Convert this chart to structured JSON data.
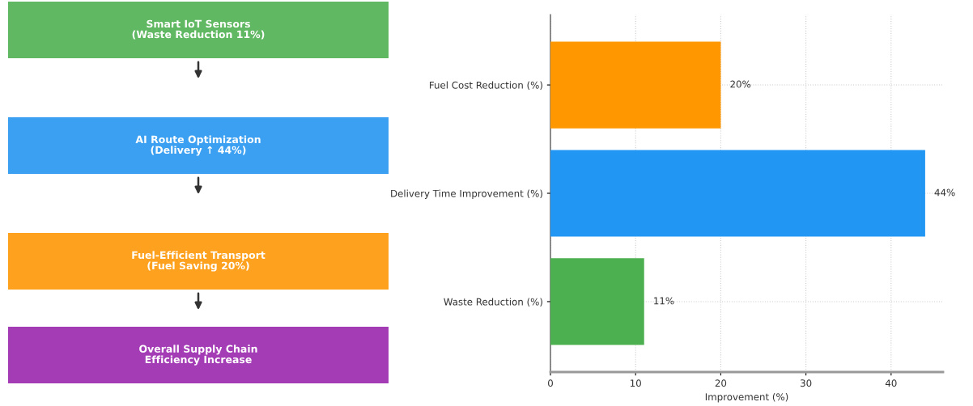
{
  "chart_data": [
    {
      "type": "other",
      "annotations": [
        "Smart IoT Sensors\n(Waste Reduction 11%)",
        "AI Route Optimization\n(Delivery ↑ 44%)",
        "Fuel-Efficient Transport\n(Fuel Saving 20%)",
        "Overall Supply Chain\nEfficiency Increase"
      ],
      "colors": [
        "#61b862",
        "#3ba0f2",
        "#fea11f",
        "#a43db5"
      ]
    },
    {
      "type": "bar",
      "orientation": "horizontal",
      "categories": [
        "Fuel Cost Reduction (%)",
        "Delivery Time Improvement (%)",
        "Waste Reduction (%)"
      ],
      "values": [
        20,
        44,
        11
      ],
      "colors": [
        "#ff9800",
        "#2196f3",
        "#4caf50"
      ],
      "value_labels": [
        "20%",
        "44%",
        "11%"
      ],
      "xlabel": "Improvement (%)",
      "xlim": [
        0,
        46.1
      ],
      "xticks": [
        0,
        10,
        20,
        30,
        40
      ],
      "grid": true
    }
  ]
}
